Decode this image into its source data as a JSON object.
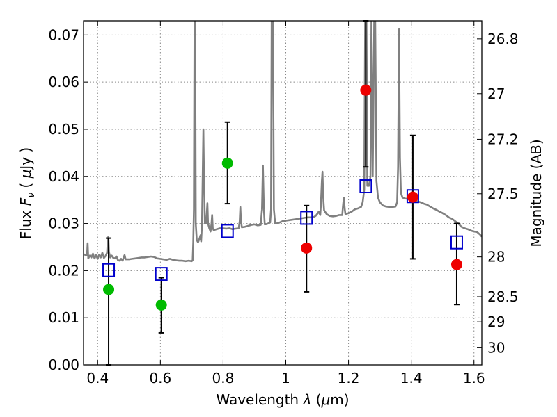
{
  "chart_data": {
    "type": "scatter",
    "xlabel": "Wavelength  λ (μm)",
    "ylabel": "Flux  F_ν  ( μJy )",
    "ylabel_parts": {
      "pre": "Flux  ",
      "F": "F",
      "sub": "ν",
      "mid": "  ( ",
      "mu": "μ",
      "post": "Jy )"
    },
    "xlabel_parts": {
      "pre": "Wavelength  ",
      "lam": "λ",
      "mid": " (",
      "mu": "μ",
      "post": "m)"
    },
    "ylabel_right": "Magnitude (AB)",
    "xlim": [
      0.355,
      1.625
    ],
    "ylim": [
      0.0,
      0.073
    ],
    "grid": true,
    "x_ticks": [
      0.4,
      0.6,
      0.8,
      1.0,
      1.2,
      1.4,
      1.6
    ],
    "x_tick_labels": [
      "0.4",
      "0.6",
      "0.8",
      "1",
      "1.2",
      "1.4",
      "1.6"
    ],
    "y_ticks": [
      0.0,
      0.01,
      0.02,
      0.03,
      0.04,
      0.05,
      0.06,
      0.07
    ],
    "y_tick_labels": [
      "0.00",
      "0.01",
      "0.02",
      "0.03",
      "0.04",
      "0.05",
      "0.06",
      "0.07"
    ],
    "mag_ticks": [
      26.8,
      27,
      27.2,
      27.5,
      28,
      28.5,
      29,
      30
    ],
    "mag_tick_labels": [
      "26.8",
      "27",
      "27.2",
      "27.5",
      "28",
      "28.5",
      "29",
      "30"
    ],
    "colors": {
      "model_spectrum": "#808080",
      "model_photometry": "#0000cc",
      "detection": "#00bb00",
      "upper_limit": "#ee0000",
      "errorbar": "#000000",
      "grid": "#888888"
    },
    "observed": [
      {
        "x": 0.435,
        "y": 0.016,
        "yerr_low": 0.016,
        "yerr_high": 0.0109,
        "color": "green"
      },
      {
        "x": 0.603,
        "y": 0.0127,
        "yerr_low": 0.0059,
        "yerr_high": 0.0058,
        "color": "green"
      },
      {
        "x": 0.814,
        "y": 0.0428,
        "yerr_low": 0.0086,
        "yerr_high": 0.0087,
        "color": "green"
      },
      {
        "x": 1.066,
        "y": 0.0248,
        "yerr_low": 0.0093,
        "yerr_high": 0.009,
        "color": "red"
      },
      {
        "x": 1.255,
        "y": 0.0583,
        "yerr_low": 0.0163,
        "yerr_high": 0.0147,
        "color": "red"
      },
      {
        "x": 1.405,
        "y": 0.0356,
        "yerr_low": 0.0131,
        "yerr_high": 0.0131,
        "color": "red"
      },
      {
        "x": 1.545,
        "y": 0.0213,
        "yerr_low": 0.0085,
        "yerr_high": 0.0087,
        "color": "red"
      }
    ],
    "model_photometry": [
      {
        "x": 0.435,
        "y": 0.0201
      },
      {
        "x": 0.603,
        "y": 0.0193
      },
      {
        "x": 0.814,
        "y": 0.0284
      },
      {
        "x": 1.066,
        "y": 0.0312
      },
      {
        "x": 1.255,
        "y": 0.0379
      },
      {
        "x": 1.405,
        "y": 0.0358
      },
      {
        "x": 1.545,
        "y": 0.026
      }
    ],
    "model_spectrum": [
      [
        0.355,
        0.0235
      ],
      [
        0.362,
        0.0233
      ],
      [
        0.366,
        0.0232
      ],
      [
        0.368,
        0.0258
      ],
      [
        0.37,
        0.0226
      ],
      [
        0.375,
        0.0232
      ],
      [
        0.38,
        0.0228
      ],
      [
        0.385,
        0.0236
      ],
      [
        0.39,
        0.0226
      ],
      [
        0.395,
        0.0233
      ],
      [
        0.4,
        0.0225
      ],
      [
        0.405,
        0.0234
      ],
      [
        0.41,
        0.0228
      ],
      [
        0.415,
        0.0238
      ],
      [
        0.42,
        0.0227
      ],
      [
        0.425,
        0.0231
      ],
      [
        0.43,
        0.0238
      ],
      [
        0.432,
        0.0261
      ],
      [
        0.434,
        0.0272
      ],
      [
        0.436,
        0.024
      ],
      [
        0.44,
        0.0228
      ],
      [
        0.445,
        0.0232
      ],
      [
        0.45,
        0.0227
      ],
      [
        0.455,
        0.0226
      ],
      [
        0.46,
        0.023
      ],
      [
        0.465,
        0.0222
      ],
      [
        0.47,
        0.0221
      ],
      [
        0.475,
        0.0225
      ],
      [
        0.48,
        0.0221
      ],
      [
        0.483,
        0.0229
      ],
      [
        0.486,
        0.0233
      ],
      [
        0.489,
        0.0224
      ],
      [
        0.495,
        0.0224
      ],
      [
        0.5,
        0.0224
      ],
      [
        0.51,
        0.0225
      ],
      [
        0.52,
        0.0226
      ],
      [
        0.53,
        0.0227
      ],
      [
        0.54,
        0.0228
      ],
      [
        0.55,
        0.0228
      ],
      [
        0.56,
        0.0229
      ],
      [
        0.57,
        0.023
      ],
      [
        0.58,
        0.0229
      ],
      [
        0.59,
        0.0226
      ],
      [
        0.6,
        0.0225
      ],
      [
        0.61,
        0.0224
      ],
      [
        0.62,
        0.0223
      ],
      [
        0.63,
        0.0225
      ],
      [
        0.64,
        0.0223
      ],
      [
        0.65,
        0.0222
      ],
      [
        0.66,
        0.0221
      ],
      [
        0.67,
        0.0221
      ],
      [
        0.68,
        0.022
      ],
      [
        0.69,
        0.0221
      ],
      [
        0.7,
        0.022
      ],
      [
        0.703,
        0.0222
      ],
      [
        0.705,
        0.026
      ],
      [
        0.707,
        0.033
      ],
      [
        0.709,
        0.073
      ],
      [
        0.711,
        0.073
      ],
      [
        0.713,
        0.03
      ],
      [
        0.716,
        0.0265
      ],
      [
        0.72,
        0.026
      ],
      [
        0.725,
        0.0268
      ],
      [
        0.728,
        0.0275
      ],
      [
        0.73,
        0.0262
      ],
      [
        0.733,
        0.03
      ],
      [
        0.735,
        0.0395
      ],
      [
        0.737,
        0.05
      ],
      [
        0.739,
        0.0395
      ],
      [
        0.742,
        0.03
      ],
      [
        0.746,
        0.03
      ],
      [
        0.748,
        0.032
      ],
      [
        0.75,
        0.0343
      ],
      [
        0.752,
        0.03
      ],
      [
        0.756,
        0.029
      ],
      [
        0.76,
        0.0283
      ],
      [
        0.763,
        0.03
      ],
      [
        0.765,
        0.0318
      ],
      [
        0.767,
        0.029
      ],
      [
        0.77,
        0.0286
      ],
      [
        0.78,
        0.0288
      ],
      [
        0.79,
        0.029
      ],
      [
        0.8,
        0.029
      ],
      [
        0.81,
        0.0289
      ],
      [
        0.82,
        0.029
      ],
      [
        0.83,
        0.0288
      ],
      [
        0.84,
        0.0289
      ],
      [
        0.85,
        0.029
      ],
      [
        0.853,
        0.0305
      ],
      [
        0.855,
        0.0335
      ],
      [
        0.857,
        0.0305
      ],
      [
        0.86,
        0.0292
      ],
      [
        0.87,
        0.0293
      ],
      [
        0.88,
        0.0295
      ],
      [
        0.89,
        0.0297
      ],
      [
        0.9,
        0.0298
      ],
      [
        0.91,
        0.0296
      ],
      [
        0.92,
        0.0297
      ],
      [
        0.924,
        0.033
      ],
      [
        0.927,
        0.0423
      ],
      [
        0.93,
        0.033
      ],
      [
        0.933,
        0.0298
      ],
      [
        0.94,
        0.0299
      ],
      [
        0.95,
        0.0302
      ],
      [
        0.953,
        0.033
      ],
      [
        0.955,
        0.073
      ],
      [
        0.959,
        0.073
      ],
      [
        0.962,
        0.033
      ],
      [
        0.966,
        0.03
      ],
      [
        0.97,
        0.03
      ],
      [
        0.98,
        0.0302
      ],
      [
        0.99,
        0.0305
      ],
      [
        1.0,
        0.0306
      ],
      [
        1.01,
        0.0307
      ],
      [
        1.02,
        0.0308
      ],
      [
        1.03,
        0.0309
      ],
      [
        1.04,
        0.031
      ],
      [
        1.05,
        0.0311
      ],
      [
        1.06,
        0.0312
      ],
      [
        1.07,
        0.0313
      ],
      [
        1.08,
        0.0313
      ],
      [
        1.09,
        0.0314
      ],
      [
        1.095,
        0.0316
      ],
      [
        1.1,
        0.032
      ],
      [
        1.105,
        0.0325
      ],
      [
        1.11,
        0.0318
      ],
      [
        1.112,
        0.034
      ],
      [
        1.115,
        0.039
      ],
      [
        1.117,
        0.041
      ],
      [
        1.119,
        0.036
      ],
      [
        1.122,
        0.0328
      ],
      [
        1.13,
        0.032
      ],
      [
        1.14,
        0.0316
      ],
      [
        1.15,
        0.0315
      ],
      [
        1.16,
        0.0316
      ],
      [
        1.17,
        0.0318
      ],
      [
        1.18,
        0.0318
      ],
      [
        1.182,
        0.0335
      ],
      [
        1.185,
        0.0355
      ],
      [
        1.188,
        0.033
      ],
      [
        1.19,
        0.032
      ],
      [
        1.2,
        0.0322
      ],
      [
        1.21,
        0.0325
      ],
      [
        1.22,
        0.033
      ],
      [
        1.23,
        0.0332
      ],
      [
        1.24,
        0.0335
      ],
      [
        1.245,
        0.0345
      ],
      [
        1.25,
        0.0372
      ],
      [
        1.253,
        0.073
      ],
      [
        1.257,
        0.073
      ],
      [
        1.26,
        0.038
      ],
      [
        1.265,
        0.038
      ],
      [
        1.27,
        0.04
      ],
      [
        1.273,
        0.073
      ],
      [
        1.277,
        0.04
      ],
      [
        1.282,
        0.073
      ],
      [
        1.285,
        0.073
      ],
      [
        1.289,
        0.039
      ],
      [
        1.294,
        0.0355
      ],
      [
        1.3,
        0.0345
      ],
      [
        1.31,
        0.0338
      ],
      [
        1.32,
        0.0336
      ],
      [
        1.33,
        0.0335
      ],
      [
        1.34,
        0.0335
      ],
      [
        1.35,
        0.0336
      ],
      [
        1.355,
        0.0345
      ],
      [
        1.358,
        0.042
      ],
      [
        1.361,
        0.0712
      ],
      [
        1.364,
        0.044
      ],
      [
        1.367,
        0.0365
      ],
      [
        1.372,
        0.0355
      ],
      [
        1.38,
        0.0353
      ],
      [
        1.39,
        0.0352
      ],
      [
        1.4,
        0.0351
      ],
      [
        1.41,
        0.0349
      ],
      [
        1.42,
        0.0347
      ],
      [
        1.43,
        0.0345
      ],
      [
        1.44,
        0.0342
      ],
      [
        1.45,
        0.034
      ],
      [
        1.46,
        0.0336
      ],
      [
        1.47,
        0.0332
      ],
      [
        1.48,
        0.0329
      ],
      [
        1.49,
        0.0325
      ],
      [
        1.5,
        0.0322
      ],
      [
        1.51,
        0.0318
      ],
      [
        1.52,
        0.0313
      ],
      [
        1.53,
        0.031
      ],
      [
        1.54,
        0.0305
      ],
      [
        1.55,
        0.03
      ],
      [
        1.56,
        0.0293
      ],
      [
        1.57,
        0.029
      ],
      [
        1.58,
        0.0288
      ],
      [
        1.59,
        0.0285
      ],
      [
        1.6,
        0.0283
      ],
      [
        1.61,
        0.0282
      ],
      [
        1.62,
        0.0276
      ],
      [
        1.625,
        0.0272
      ]
    ]
  }
}
